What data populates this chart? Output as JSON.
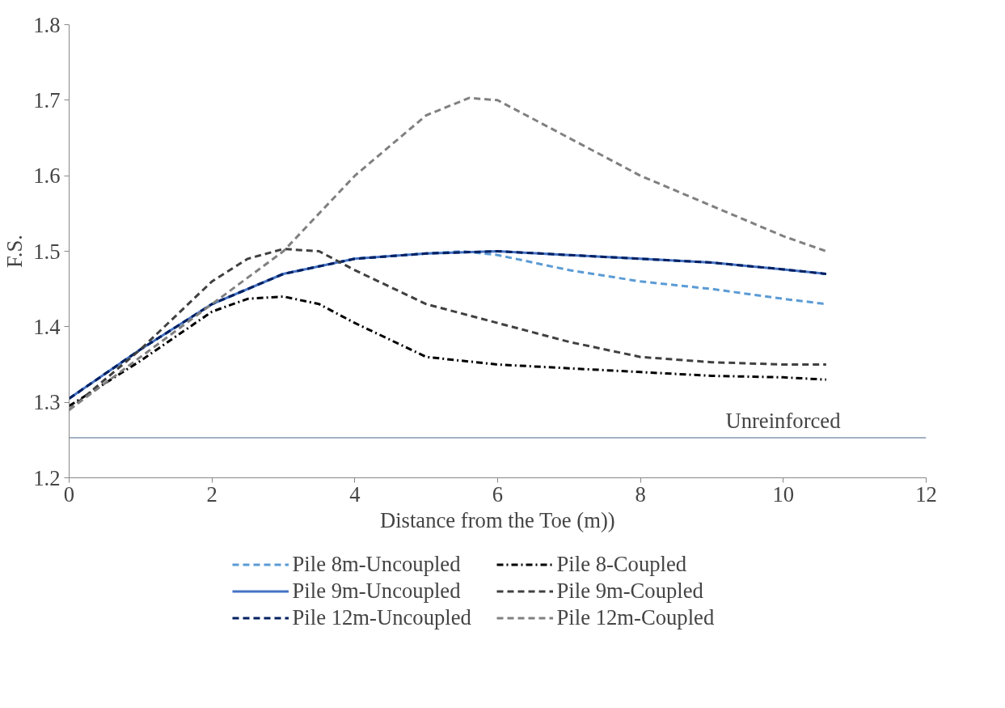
{
  "chart_data": {
    "type": "line",
    "xlabel": "Distance from the Toe (m))",
    "ylabel": "F.S.",
    "xlim": [
      0,
      12
    ],
    "xticks": [
      0,
      2,
      4,
      6,
      8,
      10,
      12
    ],
    "ylim": [
      1.2,
      1.8
    ],
    "yticks": [
      1.2,
      1.3,
      1.4,
      1.5,
      1.6,
      1.7,
      1.8
    ],
    "grid": false,
    "legend": "bottom",
    "marker": "none",
    "series": [
      {
        "name": "Pile 8m-Uncoupled",
        "color": "#5b9bd5",
        "line_style": "dashed",
        "x": [
          0,
          1,
          2,
          3,
          4,
          5,
          5.5,
          6,
          7,
          8,
          9,
          10,
          10.6
        ],
        "values": [
          1.305,
          1.37,
          1.43,
          1.47,
          1.49,
          1.497,
          1.5,
          1.495,
          1.475,
          1.46,
          1.45,
          1.437,
          1.43
        ]
      },
      {
        "name": "Pile 9m-Uncoupled",
        "color": "#4472c4",
        "line_style": "solid",
        "x": [
          0,
          1,
          2,
          3,
          4,
          5,
          6,
          7,
          8,
          9,
          10,
          10.6
        ],
        "values": [
          1.305,
          1.37,
          1.43,
          1.47,
          1.49,
          1.497,
          1.5,
          1.495,
          1.49,
          1.485,
          1.476,
          1.47
        ]
      },
      {
        "name": "Pile 12m-Uncoupled",
        "color": "#002060",
        "line_style": "dashed",
        "x": [
          0,
          1,
          2,
          3,
          4,
          5,
          6,
          7,
          8,
          9,
          10,
          10.6
        ],
        "values": [
          1.305,
          1.37,
          1.43,
          1.47,
          1.49,
          1.497,
          1.5,
          1.495,
          1.49,
          1.485,
          1.476,
          1.47
        ]
      },
      {
        "name": "Pile 8-Coupled",
        "color": "#000000",
        "line_style": "dashdot",
        "x": [
          0,
          1,
          2,
          2.5,
          3,
          3.5,
          4,
          5,
          6,
          7,
          8,
          9,
          10,
          10.6
        ],
        "values": [
          1.295,
          1.355,
          1.42,
          1.437,
          1.44,
          1.43,
          1.405,
          1.36,
          1.35,
          1.345,
          1.34,
          1.335,
          1.333,
          1.33
        ]
      },
      {
        "name": "Pile 9m-Coupled",
        "color": "#404040",
        "line_style": "dashed",
        "x": [
          0,
          1,
          2,
          2.5,
          3,
          3.5,
          4,
          5,
          6,
          7,
          8,
          9,
          10,
          10.6
        ],
        "values": [
          1.29,
          1.37,
          1.46,
          1.49,
          1.503,
          1.5,
          1.475,
          1.43,
          1.405,
          1.38,
          1.36,
          1.353,
          1.35,
          1.35
        ]
      },
      {
        "name": "Pile 12m-Coupled",
        "color": "#808080",
        "line_style": "dashed",
        "x": [
          0,
          1,
          2,
          3,
          4,
          5,
          5.6,
          6,
          7,
          8,
          9,
          10,
          10.6
        ],
        "values": [
          1.29,
          1.36,
          1.43,
          1.5,
          1.6,
          1.68,
          1.703,
          1.7,
          1.65,
          1.6,
          1.56,
          1.52,
          1.5
        ]
      }
    ],
    "ref_lines": [
      {
        "axis": "y",
        "value": 1.253,
        "label": "Unreinforced",
        "color": "#8497b0",
        "line_style": "solid"
      }
    ]
  }
}
